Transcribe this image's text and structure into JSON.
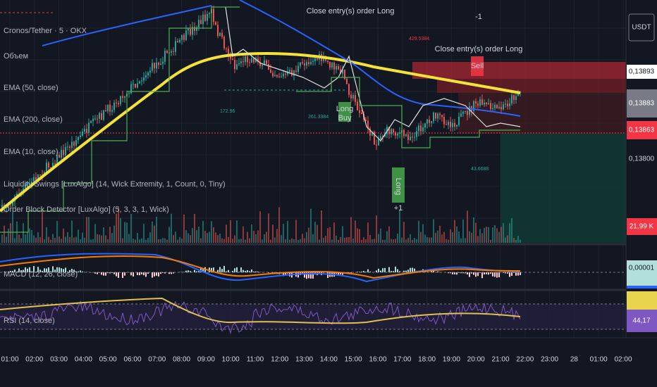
{
  "header": {
    "symbol": "Cronos/Tether · 5 · OKX",
    "volume": "Объем",
    "indicators": [
      "EMA (50, close)",
      "EMA (200, close)",
      "EMA (10, close)",
      "Liquidity Swings [LuxAlgo] (14, Wick Extremity, 1, Count, 0, Tiny)",
      "Order Block Detector [LuxAlgo] (5, 3, 3, 1, Wick)"
    ]
  },
  "price_axis": {
    "currency": "USDT",
    "labels": [
      "0,13893",
      "0,13883",
      "0,13863",
      "0,13800",
      "21,99 K"
    ]
  },
  "macd": {
    "label": "MACD (12, 26, close)",
    "value": "0,00001"
  },
  "rsi": {
    "label": "RSI (14, close)",
    "value": "44,17"
  },
  "time_axis": {
    "labels": [
      "01:00",
      "02:00",
      "03:00",
      "04:00",
      "05:00",
      "06:00",
      "07:00",
      "08:00",
      "09:00",
      "10:00",
      "11:00",
      "12:00",
      "13:00",
      "14:00",
      "15:00",
      "16:00",
      "17:00",
      "18:00",
      "19:00",
      "20:00",
      "21:00",
      "22:00",
      "23:00",
      "28",
      "01:00",
      "02:00"
    ]
  },
  "annotations": {
    "close_1": "Close entry(s) order Long",
    "close_2": "Close entry(s) order Long",
    "minus": "-1",
    "plus": "+1",
    "long_1": "Long",
    "long_2": "Long",
    "sell": "Sell",
    "buy": "Buy",
    "level_1": "429.5384",
    "level_2": "172.96",
    "level_3": "261.3384",
    "level_4": "43.6688"
  }
}
